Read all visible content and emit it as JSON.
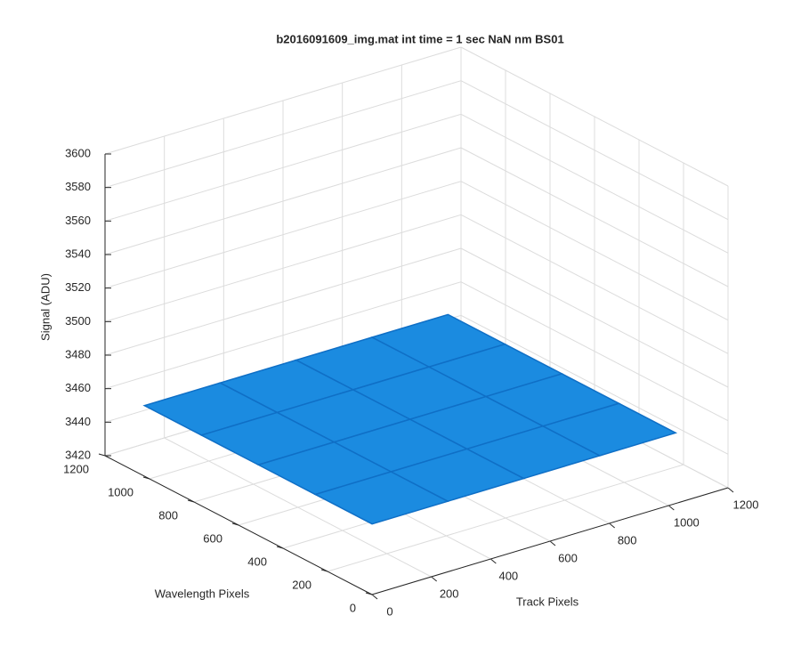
{
  "chart_data": {
    "type": "surface3d",
    "title": "b2016091609_img.mat int time = 1 sec  NaN nm BS01",
    "xlabel": "Track Pixels",
    "ylabel": "Wavelength Pixels",
    "zlabel": "Signal (ADU)",
    "xlim": [
      0,
      1200
    ],
    "xticks": [
      0,
      200,
      400,
      600,
      800,
      1000,
      1200
    ],
    "ylim": [
      0,
      1200
    ],
    "yticks": [
      0,
      200,
      400,
      600,
      800,
      1000,
      1200
    ],
    "zlim": [
      3420,
      3600
    ],
    "zticks": [
      3420,
      3440,
      3460,
      3480,
      3500,
      3520,
      3540,
      3560,
      3580,
      3600
    ],
    "grid": true,
    "color": "#1b8be0",
    "edge_color": "#0f6fc6",
    "x": [
      1,
      256,
      512,
      768,
      1024
    ],
    "y": [
      1,
      256,
      512,
      768,
      1024
    ],
    "z": [
      [
        3462,
        3462,
        3462,
        3462,
        3462
      ],
      [
        3462,
        3462,
        3462,
        3462,
        3462
      ],
      [
        3462,
        3462,
        3462,
        3462,
        3462
      ],
      [
        3462,
        3462,
        3462,
        3462,
        3462
      ],
      [
        3462,
        3462,
        3462,
        3462,
        3462
      ]
    ]
  }
}
